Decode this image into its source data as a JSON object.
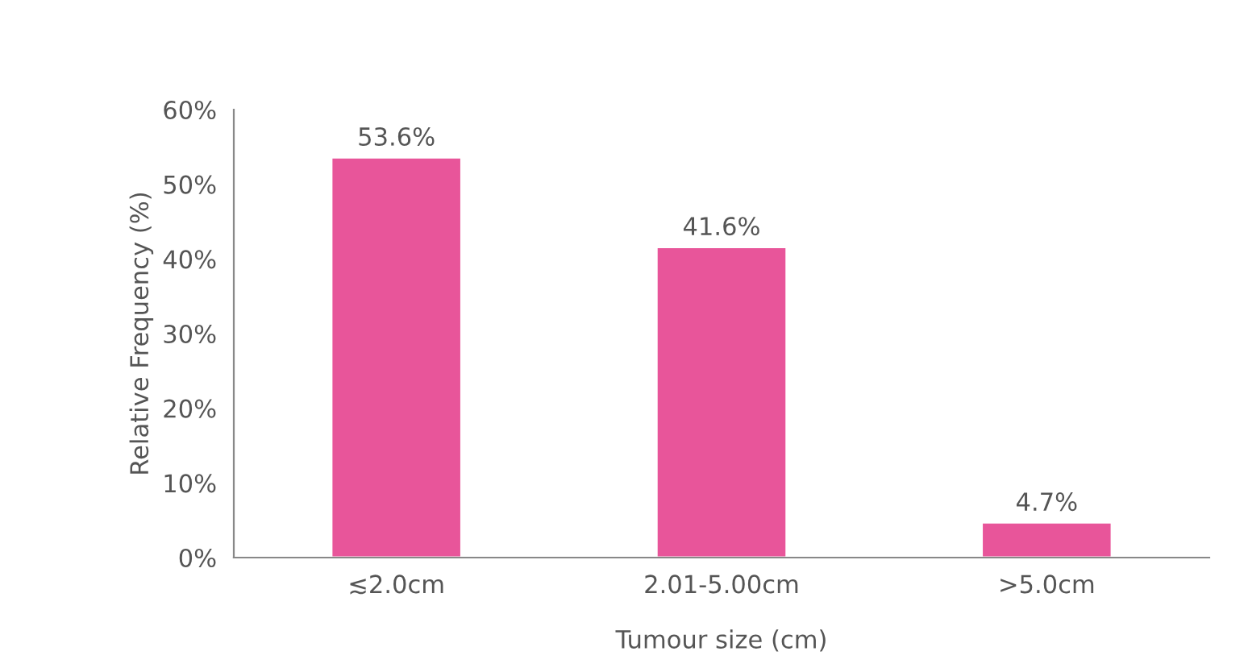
{
  "chart_data": {
    "type": "bar",
    "categories": [
      "≲2.0cm",
      "2.01-5.00cm",
      ">5.0cm"
    ],
    "values": [
      53.6,
      41.6,
      4.7
    ],
    "value_labels": [
      "53.6%",
      "41.6%",
      "4.7%"
    ],
    "color": "#e8559a",
    "xlabel": "Tumour size (cm)",
    "ylabel": "Relative Frequency (%)",
    "ylim": [
      0,
      60
    ],
    "yticks": [
      {
        "value": 0,
        "label": "0%"
      },
      {
        "value": 10,
        "label": "10%"
      },
      {
        "value": 20,
        "label": "20%"
      },
      {
        "value": 30,
        "label": "30%"
      },
      {
        "value": 40,
        "label": "40%"
      },
      {
        "value": 50,
        "label": "50%"
      },
      {
        "value": 60,
        "label": "60%"
      }
    ],
    "grid": false,
    "legend": false
  }
}
